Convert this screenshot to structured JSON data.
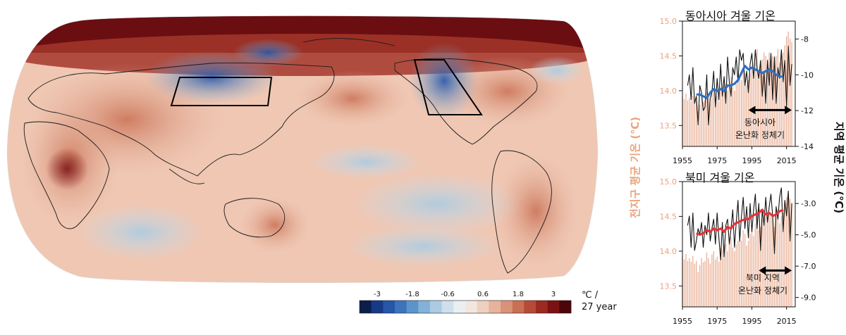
{
  "map": {
    "colorbar": {
      "tick_labels": [
        "-3",
        "-1.8",
        "-0.6",
        "0.6",
        "1.8",
        "3"
      ],
      "unit_line1": "℃ /",
      "unit_line2": "27 year",
      "colors": [
        "#0b1d4a",
        "#163a86",
        "#2656a8",
        "#3b74bd",
        "#5b94cb",
        "#83b2d8",
        "#aacbe2",
        "#cfe0ec",
        "#eaeff2",
        "#f3e6df",
        "#efcfbf",
        "#e6b39c",
        "#d99378",
        "#c96f53",
        "#b54b36",
        "#9b2a20",
        "#7a1214",
        "#4c0508"
      ]
    }
  },
  "chart_data": [
    {
      "type": "line",
      "title": "동아시아 겨울 기온",
      "xlim": [
        1955,
        2020
      ],
      "xticks": [
        1955,
        1975,
        1995,
        2015
      ],
      "left_axis": {
        "label": "전지구 평균 기온 (℃)",
        "ylim": [
          13.2,
          15.0
        ],
        "ticks": [
          "15.0",
          "14.5",
          "14.0",
          "13.5"
        ],
        "color": "#e8a580"
      },
      "right_axis": {
        "label": "지역 평균 기온 (℃)",
        "ylim": [
          -14,
          -7
        ],
        "ticks": [
          "-8",
          "-10",
          "-12",
          "-14"
        ],
        "values": [
          -8,
          -10,
          -12,
          -14
        ]
      },
      "annotation_line1": "동아시아",
      "annotation_line2": "온난화 정체기",
      "annotation_arrow": [
        1993,
        2018
      ],
      "series": [
        {
          "kind": "bars",
          "axis": "left",
          "color": "#eab39a",
          "x": [
            1955,
            1956,
            1957,
            1958,
            1959,
            1960,
            1961,
            1962,
            1963,
            1964,
            1965,
            1966,
            1967,
            1968,
            1969,
            1970,
            1971,
            1972,
            1973,
            1974,
            1975,
            1976,
            1977,
            1978,
            1979,
            1980,
            1981,
            1982,
            1983,
            1984,
            1985,
            1986,
            1987,
            1988,
            1989,
            1990,
            1991,
            1992,
            1993,
            1994,
            1995,
            1996,
            1997,
            1998,
            1999,
            2000,
            2001,
            2002,
            2003,
            2004,
            2005,
            2006,
            2007,
            2008,
            2009,
            2010,
            2011,
            2012,
            2013,
            2014,
            2015,
            2016,
            2017,
            2018
          ],
          "values": [
            13.92,
            13.88,
            13.96,
            13.86,
            13.9,
            13.85,
            13.93,
            13.82,
            13.86,
            13.7,
            13.8,
            13.9,
            13.84,
            13.86,
            13.98,
            13.9,
            13.82,
            13.95,
            14.0,
            13.88,
            13.92,
            13.85,
            14.05,
            14.02,
            14.08,
            14.1,
            14.0,
            14.1,
            14.2,
            14.05,
            14.0,
            14.1,
            14.15,
            14.2,
            14.15,
            14.3,
            14.25,
            14.08,
            14.15,
            14.25,
            14.35,
            14.22,
            14.4,
            14.6,
            14.3,
            14.35,
            14.45,
            14.55,
            14.5,
            14.45,
            14.55,
            14.5,
            14.5,
            14.35,
            14.5,
            14.6,
            14.4,
            14.5,
            14.55,
            14.65,
            14.78,
            14.85,
            14.75,
            14.7
          ]
        },
        {
          "kind": "line",
          "axis": "right",
          "color": "#111111",
          "x": [
            1958,
            1959,
            1960,
            1961,
            1962,
            1963,
            1964,
            1965,
            1966,
            1967,
            1968,
            1969,
            1970,
            1971,
            1972,
            1973,
            1974,
            1975,
            1976,
            1977,
            1978,
            1979,
            1980,
            1981,
            1982,
            1983,
            1984,
            1985,
            1986,
            1987,
            1988,
            1989,
            1990,
            1991,
            1992,
            1993,
            1994,
            1995,
            1996,
            1997,
            1998,
            1999,
            2000,
            2001,
            2002,
            2003,
            2004,
            2005,
            2006,
            2007,
            2008,
            2009,
            2010,
            2011,
            2012,
            2013,
            2014,
            2015,
            2016,
            2017,
            2018
          ],
          "values": [
            -10.6,
            -10.0,
            -11.4,
            -9.6,
            -11.6,
            -11.2,
            -12.8,
            -10.6,
            -11.0,
            -12.0,
            -11.8,
            -10.0,
            -12.8,
            -11.3,
            -11.0,
            -9.8,
            -11.8,
            -10.2,
            -11.4,
            -9.4,
            -11.2,
            -10.1,
            -11.6,
            -9.0,
            -10.4,
            -11.2,
            -9.6,
            -10.0,
            -9.0,
            -10.4,
            -8.6,
            -9.2,
            -8.8,
            -10.6,
            -9.8,
            -11.0,
            -9.4,
            -8.8,
            -10.2,
            -8.6,
            -9.6,
            -10.2,
            -9.2,
            -11.2,
            -9.8,
            -11.6,
            -9.2,
            -10.6,
            -8.8,
            -11.4,
            -9.0,
            -11.6,
            -9.6,
            -10.2,
            -8.6,
            -10.4,
            -9.2,
            -11.8,
            -8.4,
            -10.6,
            -9.4
          ]
        },
        {
          "kind": "line",
          "axis": "right",
          "color": "#2f70c2",
          "x": [
            1963,
            1965,
            1967,
            1969,
            1971,
            1973,
            1975,
            1977,
            1979,
            1981,
            1983,
            1985,
            1987,
            1989,
            1991,
            1993,
            1995,
            1997,
            1999,
            2001,
            2003,
            2005,
            2007,
            2009,
            2011,
            2013
          ],
          "values": [
            -11.1,
            -11.1,
            -11.2,
            -11.3,
            -11.0,
            -10.8,
            -10.9,
            -10.8,
            -10.9,
            -10.6,
            -10.6,
            -10.5,
            -10.3,
            -9.9,
            -9.5,
            -9.7,
            -9.6,
            -9.7,
            -9.8,
            -9.9,
            -9.8,
            -9.7,
            -9.8,
            -10.0,
            -10.1,
            -10.1
          ]
        }
      ]
    },
    {
      "type": "line",
      "title": "북미 겨울 기온",
      "xlim": [
        1955,
        2020
      ],
      "xticks": [
        1955,
        1975,
        1995,
        2015
      ],
      "left_axis": {
        "label": "전지구 평균 기온 (℃)",
        "ylim": [
          13.2,
          15.0
        ],
        "ticks": [
          "15.0",
          "14.5",
          "14.0",
          "13.5"
        ],
        "color": "#e8a580"
      },
      "right_axis": {
        "label": "지역 평균 기온 (℃)",
        "ylim": [
          -9.6,
          -1.6
        ],
        "ticks": [
          "-3.0",
          "-5.0",
          "-7.0",
          "-9.0"
        ],
        "values": [
          -3,
          -5,
          -7,
          -9
        ]
      },
      "annotation_line1": "북미 지역",
      "annotation_line2": "온난화 정체기",
      "annotation_arrow": [
        1999,
        2018
      ],
      "series": [
        {
          "kind": "bars",
          "axis": "left",
          "color": "#eab39a",
          "x": [
            1955,
            1956,
            1957,
            1958,
            1959,
            1960,
            1961,
            1962,
            1963,
            1964,
            1965,
            1966,
            1967,
            1968,
            1969,
            1970,
            1971,
            1972,
            1973,
            1974,
            1975,
            1976,
            1977,
            1978,
            1979,
            1980,
            1981,
            1982,
            1983,
            1984,
            1985,
            1986,
            1987,
            1988,
            1989,
            1990,
            1991,
            1992,
            1993,
            1994,
            1995,
            1996,
            1997,
            1998,
            1999,
            2000,
            2001,
            2002,
            2003,
            2004,
            2005,
            2006,
            2007,
            2008,
            2009,
            2010,
            2011,
            2012,
            2013,
            2014,
            2015,
            2016,
            2017,
            2018
          ],
          "values": [
            13.92,
            13.88,
            13.96,
            13.86,
            13.9,
            13.85,
            13.93,
            13.82,
            13.86,
            13.7,
            13.8,
            13.9,
            13.84,
            13.86,
            13.98,
            13.9,
            13.82,
            13.95,
            14.0,
            13.88,
            13.92,
            13.85,
            14.05,
            14.02,
            14.08,
            14.1,
            14.0,
            14.1,
            14.2,
            14.05,
            14.0,
            14.1,
            14.15,
            14.2,
            14.15,
            14.3,
            14.25,
            14.08,
            14.15,
            14.25,
            14.35,
            14.22,
            14.4,
            14.6,
            14.3,
            14.35,
            14.45,
            14.55,
            14.5,
            14.45,
            14.55,
            14.5,
            14.5,
            14.35,
            14.5,
            14.6,
            14.4,
            14.5,
            14.55,
            14.65,
            14.78,
            14.85,
            14.75,
            14.7
          ]
        },
        {
          "kind": "line",
          "axis": "right",
          "color": "#111111",
          "x": [
            1958,
            1959,
            1960,
            1961,
            1962,
            1963,
            1964,
            1965,
            1966,
            1967,
            1968,
            1969,
            1970,
            1971,
            1972,
            1973,
            1974,
            1975,
            1976,
            1977,
            1978,
            1979,
            1980,
            1981,
            1982,
            1983,
            1984,
            1985,
            1986,
            1987,
            1988,
            1989,
            1990,
            1991,
            1992,
            1993,
            1994,
            1995,
            1996,
            1997,
            1998,
            1999,
            2000,
            2001,
            2002,
            2003,
            2004,
            2005,
            2006,
            2007,
            2008,
            2009,
            2010,
            2011,
            2012,
            2013,
            2014,
            2015,
            2016,
            2017,
            2018
          ],
          "values": [
            -4.4,
            -3.8,
            -5.8,
            -3.6,
            -6.0,
            -5.4,
            -4.6,
            -5.0,
            -4.2,
            -5.8,
            -4.4,
            -5.0,
            -3.6,
            -5.4,
            -4.6,
            -4.0,
            -5.6,
            -3.6,
            -5.2,
            -6.6,
            -4.2,
            -6.4,
            -4.4,
            -4.0,
            -5.6,
            -4.6,
            -3.4,
            -5.8,
            -4.2,
            -2.8,
            -5.4,
            -3.8,
            -2.6,
            -4.6,
            -3.2,
            -5.2,
            -3.0,
            -4.8,
            -3.4,
            -2.4,
            -4.6,
            -3.0,
            -6.0,
            -3.4,
            -4.4,
            -2.6,
            -4.2,
            -3.2,
            -2.4,
            -3.8,
            -6.2,
            -3.2,
            -4.0,
            -2.6,
            -2.0,
            -4.8,
            -2.8,
            -3.8,
            -2.2,
            -5.4,
            -3.0
          ]
        },
        {
          "kind": "line",
          "axis": "right",
          "color": "#e53337",
          "x": [
            1963,
            1965,
            1967,
            1969,
            1971,
            1973,
            1975,
            1977,
            1979,
            1981,
            1983,
            1985,
            1987,
            1989,
            1991,
            1993,
            1995,
            1997,
            1999,
            2001,
            2003,
            2005,
            2007,
            2009,
            2011,
            2013
          ],
          "values": [
            -4.9,
            -5.0,
            -4.9,
            -4.7,
            -4.8,
            -4.6,
            -4.7,
            -4.6,
            -4.8,
            -4.5,
            -4.6,
            -4.3,
            -4.2,
            -4.1,
            -4.0,
            -4.0,
            -3.8,
            -3.7,
            -3.6,
            -3.4,
            -3.7,
            -3.6,
            -3.8,
            -3.7,
            -3.5,
            -3.4
          ]
        }
      ]
    }
  ]
}
